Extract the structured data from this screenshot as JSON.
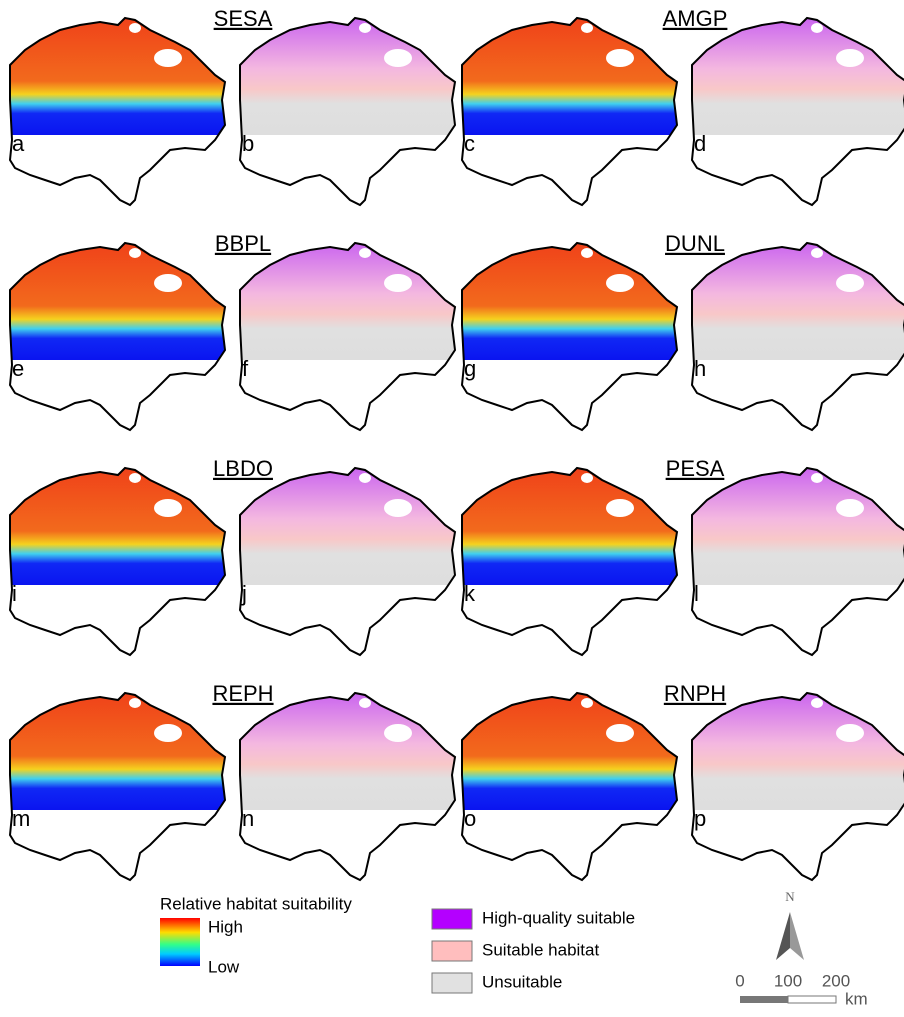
{
  "panels": [
    {
      "species": "SESA",
      "letters": [
        "a",
        "b"
      ]
    },
    {
      "species": "AMGP",
      "letters": [
        "c",
        "d"
      ]
    },
    {
      "species": "BBPL",
      "letters": [
        "e",
        "f"
      ]
    },
    {
      "species": "DUNL",
      "letters": [
        "g",
        "h"
      ]
    },
    {
      "species": "LBDO",
      "letters": [
        "i",
        "j"
      ]
    },
    {
      "species": "PESA",
      "letters": [
        "k",
        "l"
      ]
    },
    {
      "species": "REPH",
      "letters": [
        "m",
        "n"
      ]
    },
    {
      "species": "RNPH",
      "letters": [
        "o",
        "p"
      ]
    }
  ],
  "suitability_legend": {
    "title": "Relative habitat suitability",
    "high": "High",
    "low": "Low"
  },
  "class_legend": [
    "High-quality suitable",
    "Suitable habitat",
    "Unsuitable"
  ],
  "north": "N",
  "scale_bar": {
    "ticks": [
      0,
      100,
      200
    ],
    "unit": "km"
  }
}
